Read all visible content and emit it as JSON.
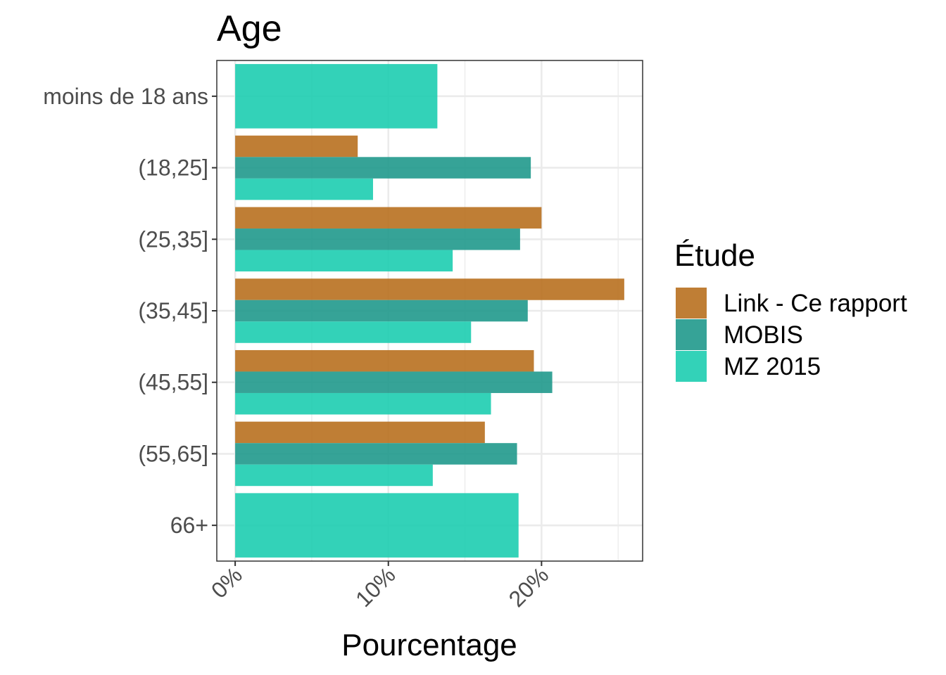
{
  "chart_data": {
    "type": "bar",
    "orientation": "horizontal",
    "title": "Age",
    "xlabel": "Pourcentage",
    "ylabel": "",
    "categories": [
      "moins de 18 ans",
      "(18,25]",
      "(25,35]",
      "(35,45]",
      "(45,55]",
      "(55,65]",
      "66+"
    ],
    "series": [
      {
        "name": "Link - Ce rapport",
        "color": "#b8701f",
        "values": [
          null,
          8.0,
          20.0,
          25.4,
          19.5,
          16.3,
          null
        ]
      },
      {
        "name": "MOBIS",
        "color": "#20998c",
        "values": [
          null,
          19.3,
          18.6,
          19.1,
          20.7,
          18.4,
          null
        ]
      },
      {
        "name": "MZ 2015",
        "color": "#1dcdb0",
        "values": [
          13.2,
          9.0,
          14.2,
          15.4,
          16.7,
          12.9,
          18.5
        ]
      }
    ],
    "xlim": [
      -1.2,
      26.6
    ],
    "xticks": [
      0,
      10,
      20
    ],
    "xtick_labels": [
      "0%",
      "10%",
      "20%"
    ],
    "grid": true,
    "legend": {
      "title": "Étude",
      "position": "right"
    }
  }
}
